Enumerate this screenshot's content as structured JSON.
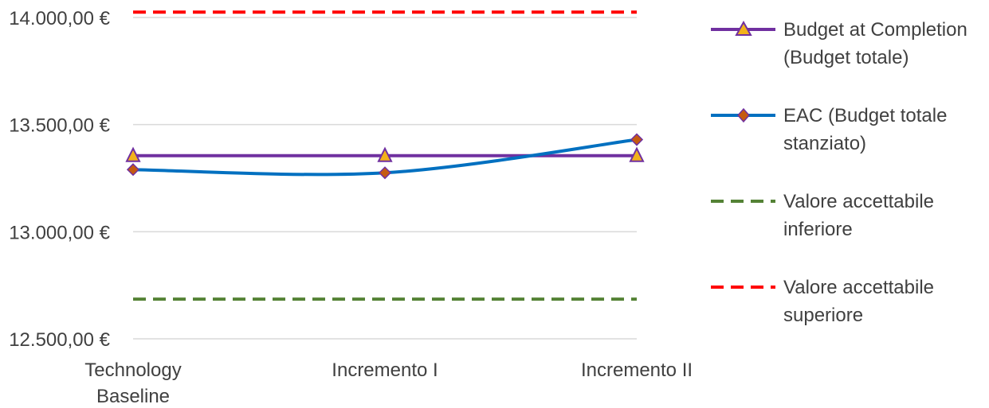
{
  "chart_data": {
    "type": "line",
    "categories": [
      "Technology Baseline",
      "Incremento I",
      "Incremento II"
    ],
    "y_ticks": [
      "14.000,00 €",
      "13.500,00 €",
      "13.000,00 €",
      "12.500,00 €"
    ],
    "ylim": [
      12500,
      14000
    ],
    "grid": true,
    "legend_position": "right",
    "series": [
      {
        "name": "Budget at Completion (Budget totale)",
        "values": [
          13355,
          13355,
          13355
        ],
        "color": "#7030A0",
        "marker": "triangle",
        "marker_color": "#F2B21B",
        "style": "solid"
      },
      {
        "name": "EAC (Budget totale stanziato)",
        "values": [
          13290,
          13275,
          13430
        ],
        "color": "#0070C0",
        "marker": "diamond",
        "marker_color": "#C55A11",
        "style": "solid-smooth"
      },
      {
        "name": "Valore accettabile inferiore",
        "values": [
          12685,
          12685,
          12685
        ],
        "color": "#548235",
        "marker": "none",
        "style": "dashed"
      },
      {
        "name": "Valore accettabile superiore",
        "values": [
          14025,
          14025,
          14025
        ],
        "color": "#FF0000",
        "marker": "none",
        "style": "dashed"
      }
    ]
  }
}
